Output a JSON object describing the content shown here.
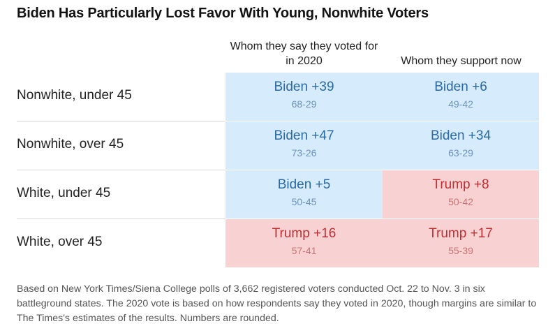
{
  "title": "Biden Has Particularly Lost Favor With Young, Nonwhite Voters",
  "columns": [
    "Whom they say they voted for in 2020",
    "Whom they support now"
  ],
  "rows": [
    {
      "label": "Nonwhite, under 45",
      "cells": [
        {
          "text": "Biden +39",
          "split": "68-29",
          "party": "biden",
          "margin": 39
        },
        {
          "text": "Biden +6",
          "split": "49-42",
          "party": "biden",
          "margin": 6
        }
      ]
    },
    {
      "label": "Nonwhite, over 45",
      "cells": [
        {
          "text": "Biden +47",
          "split": "73-26",
          "party": "biden",
          "margin": 47
        },
        {
          "text": "Biden +34",
          "split": "63-29",
          "party": "biden",
          "margin": 34
        }
      ]
    },
    {
      "label": "White, under 45",
      "cells": [
        {
          "text": "Biden +5",
          "split": "50-45",
          "party": "biden",
          "margin": 5
        },
        {
          "text": "Trump +8",
          "split": "50-42",
          "party": "trump",
          "margin": 8
        }
      ]
    },
    {
      "label": "White, over 45",
      "cells": [
        {
          "text": "Trump +16",
          "split": "57-41",
          "party": "trump",
          "margin": 16
        },
        {
          "text": "Trump +17",
          "split": "55-39",
          "party": "trump",
          "margin": 17
        }
      ]
    }
  ],
  "colors": {
    "biden": "#d6ebfb",
    "trump": "#f8d2d2",
    "biden_text": "#2a6aa6",
    "trump_text": "#bf2f32"
  },
  "note": "Based on New York Times/Siena College polls of 3,662 registered voters conducted Oct. 22 to Nov. 3 in six battleground states. The 2020 vote is based on how respondents say they voted in 2020, though margins are similar to The Times's estimates of the results. Numbers are rounded.",
  "chart_data": {
    "type": "table",
    "title": "Biden Has Particularly Lost Favor With Young, Nonwhite Voters",
    "columns": [
      "Whom they say they voted for in 2020",
      "Whom they support now"
    ],
    "row_labels": [
      "Nonwhite, under 45",
      "Nonwhite, over 45",
      "White, under 45",
      "White, over 45"
    ],
    "values": [
      [
        "Biden +39 (68-29)",
        "Biden +6 (49-42)"
      ],
      [
        "Biden +47 (73-26)",
        "Biden +34 (63-29)"
      ],
      [
        "Biden +5 (50-45)",
        "Trump +8 (50-42)"
      ],
      [
        "Trump +16 (57-41)",
        "Trump +17 (55-39)"
      ]
    ]
  }
}
